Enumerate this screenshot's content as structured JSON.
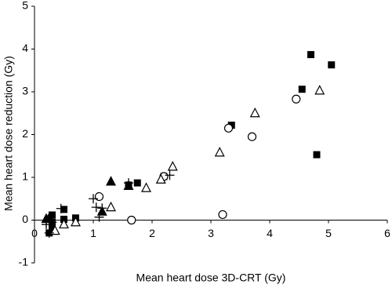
{
  "chart_data": {
    "type": "scatter",
    "x_label": "Mean heart dose 3D-CRT (Gy)",
    "y_label": "Mean heart dose reduction (Gy)",
    "xlim": [
      0,
      6
    ],
    "xticks": [
      0,
      1,
      2,
      3,
      4,
      5,
      6
    ],
    "ylim": [
      -1,
      5
    ],
    "yticks": [
      -1,
      0,
      1,
      2,
      3,
      4,
      5
    ],
    "series": [
      {
        "marker": "square",
        "color": "#000000",
        "x": [
          0.3,
          0.3,
          0.5,
          0.5,
          0.7,
          0.3,
          1.6,
          1.75,
          2.2,
          3.35,
          4.55,
          4.7,
          5.05,
          4.8,
          0.25
        ],
        "values": [
          0.12,
          -0.05,
          0.25,
          0.02,
          0.05,
          -0.2,
          0.82,
          0.87,
          1.02,
          2.22,
          3.06,
          3.87,
          3.63,
          1.53,
          -0.3
        ]
      },
      {
        "marker": "triangle",
        "color": "#000000",
        "x": [
          1.3,
          1.15,
          1.6,
          0.2,
          0.25
        ],
        "values": [
          0.9,
          0.2,
          0.8,
          0.03,
          0.05
        ]
      },
      {
        "marker": "circle-open",
        "color": "#000000",
        "x": [
          1.1,
          1.65,
          2.2,
          3.2,
          3.3,
          3.7,
          4.45
        ],
        "values": [
          0.55,
          0,
          1.02,
          0.13,
          2.15,
          1.95,
          2.83
        ]
      },
      {
        "marker": "triangle-open",
        "color": "#000000",
        "x": [
          0.5,
          0.7,
          1.3,
          1.9,
          2.15,
          2.35,
          3.15,
          3.75,
          4.85,
          0.35
        ],
        "values": [
          -0.1,
          -0.05,
          0.3,
          0.75,
          0.95,
          1.25,
          1.58,
          2.5,
          3.03,
          -0.25
        ]
      },
      {
        "marker": "plus",
        "color": "#000000",
        "x": [
          0.2,
          0.25,
          0.45,
          1.0,
          1.05,
          1.1,
          1.15,
          1.6,
          2.3,
          0.2,
          0.3
        ],
        "values": [
          -0.1,
          -0.3,
          0.27,
          0.5,
          0.3,
          0.07,
          0.28,
          0.87,
          1.05,
          -0.05,
          -0.05
        ]
      }
    ]
  }
}
